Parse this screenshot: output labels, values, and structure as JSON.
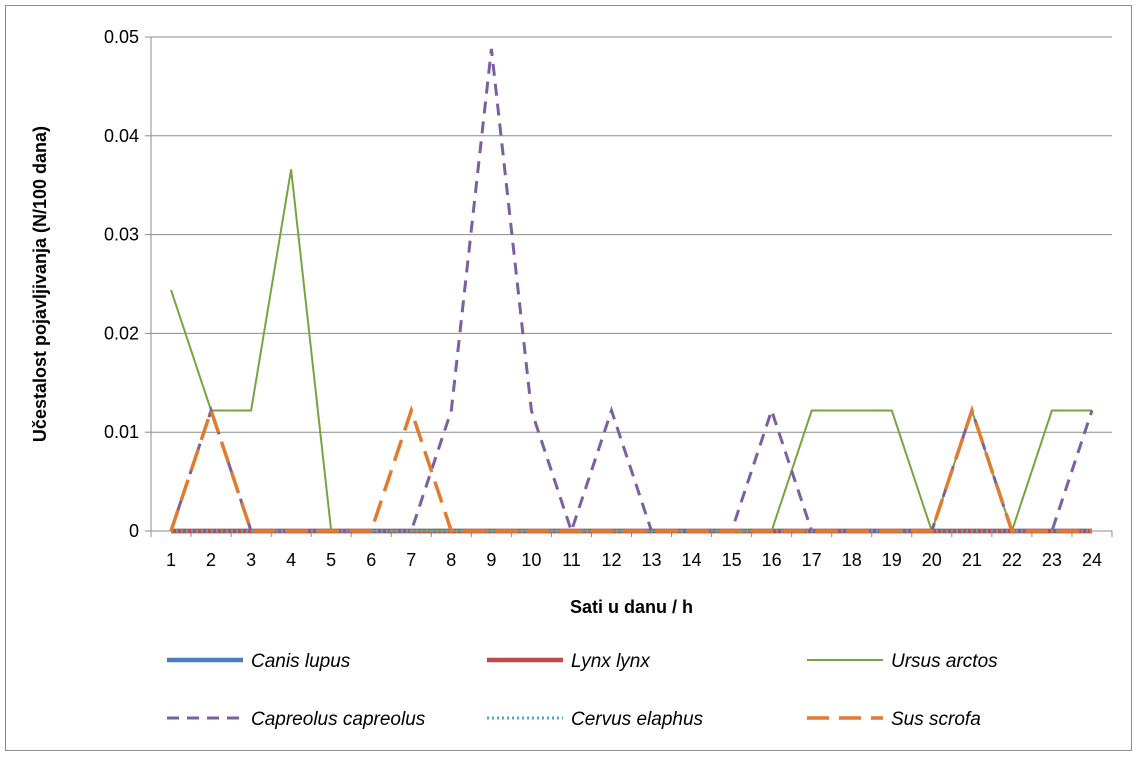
{
  "chart_data": {
    "type": "line",
    "title": "",
    "xlabel": "Sati u danu / h",
    "ylabel": "Učestalost pojavljivanja (N/100 dana)",
    "categories": [
      "1",
      "2",
      "3",
      "4",
      "5",
      "6",
      "7",
      "8",
      "9",
      "10",
      "11",
      "12",
      "13",
      "14",
      "15",
      "16",
      "17",
      "18",
      "19",
      "20",
      "21",
      "22",
      "23",
      "24"
    ],
    "y_ticks": [
      "0",
      "0.01",
      "0.02",
      "0.03",
      "0.04",
      "0.05"
    ],
    "ylim": [
      0,
      0.05
    ],
    "grid": "horizontal",
    "legend_position": "bottom",
    "series": [
      {
        "name": "Canis lupus",
        "color": "#4a7ebb",
        "style": "solid-thick",
        "values": [
          0,
          0,
          0,
          0,
          0,
          0,
          0,
          0,
          0,
          0,
          0,
          0,
          0,
          0,
          0,
          0,
          0,
          0,
          0,
          0,
          0,
          0,
          0,
          0
        ]
      },
      {
        "name": "Lynx lynx",
        "color": "#be4b48",
        "style": "solid-thick",
        "values": [
          0,
          0,
          0,
          0,
          0,
          0,
          0,
          0,
          0,
          0,
          0,
          0,
          0,
          0,
          0,
          0,
          0,
          0,
          0,
          0,
          0,
          0,
          0,
          0
        ]
      },
      {
        "name": "Ursus arctos",
        "color": "#77a442",
        "style": "solid",
        "values": [
          0.0244,
          0.0122,
          0.0122,
          0.0366,
          0,
          0,
          0,
          0,
          0,
          0,
          0,
          0,
          0,
          0,
          0,
          0,
          0.0122,
          0.0122,
          0.0122,
          0,
          0.0122,
          0,
          0.0122,
          0.0122
        ]
      },
      {
        "name": "Capreolus capreolus",
        "color": "#7d5fa0",
        "style": "dash",
        "values": [
          0,
          0.0122,
          0,
          0,
          0,
          0,
          0,
          0.0122,
          0.0488,
          0.0122,
          0,
          0.0122,
          0,
          0,
          0,
          0.0122,
          0,
          0,
          0,
          0,
          0.0122,
          0,
          0,
          0.0122
        ]
      },
      {
        "name": "Cervus elaphus",
        "color": "#4bacc6",
        "style": "dot",
        "values": [
          0,
          0,
          0,
          0,
          0,
          0,
          0,
          0,
          0,
          0,
          0,
          0,
          0,
          0,
          0,
          0,
          0,
          0,
          0,
          0,
          0,
          0,
          0,
          0
        ]
      },
      {
        "name": "Sus scrofa",
        "color": "#e07b2f",
        "style": "longdash",
        "values": [
          0,
          0.0122,
          0,
          0,
          0,
          0,
          0.0122,
          0,
          0,
          0,
          0,
          0,
          0,
          0,
          0,
          0,
          0,
          0,
          0,
          0,
          0.0122,
          0,
          0,
          0
        ]
      }
    ]
  }
}
